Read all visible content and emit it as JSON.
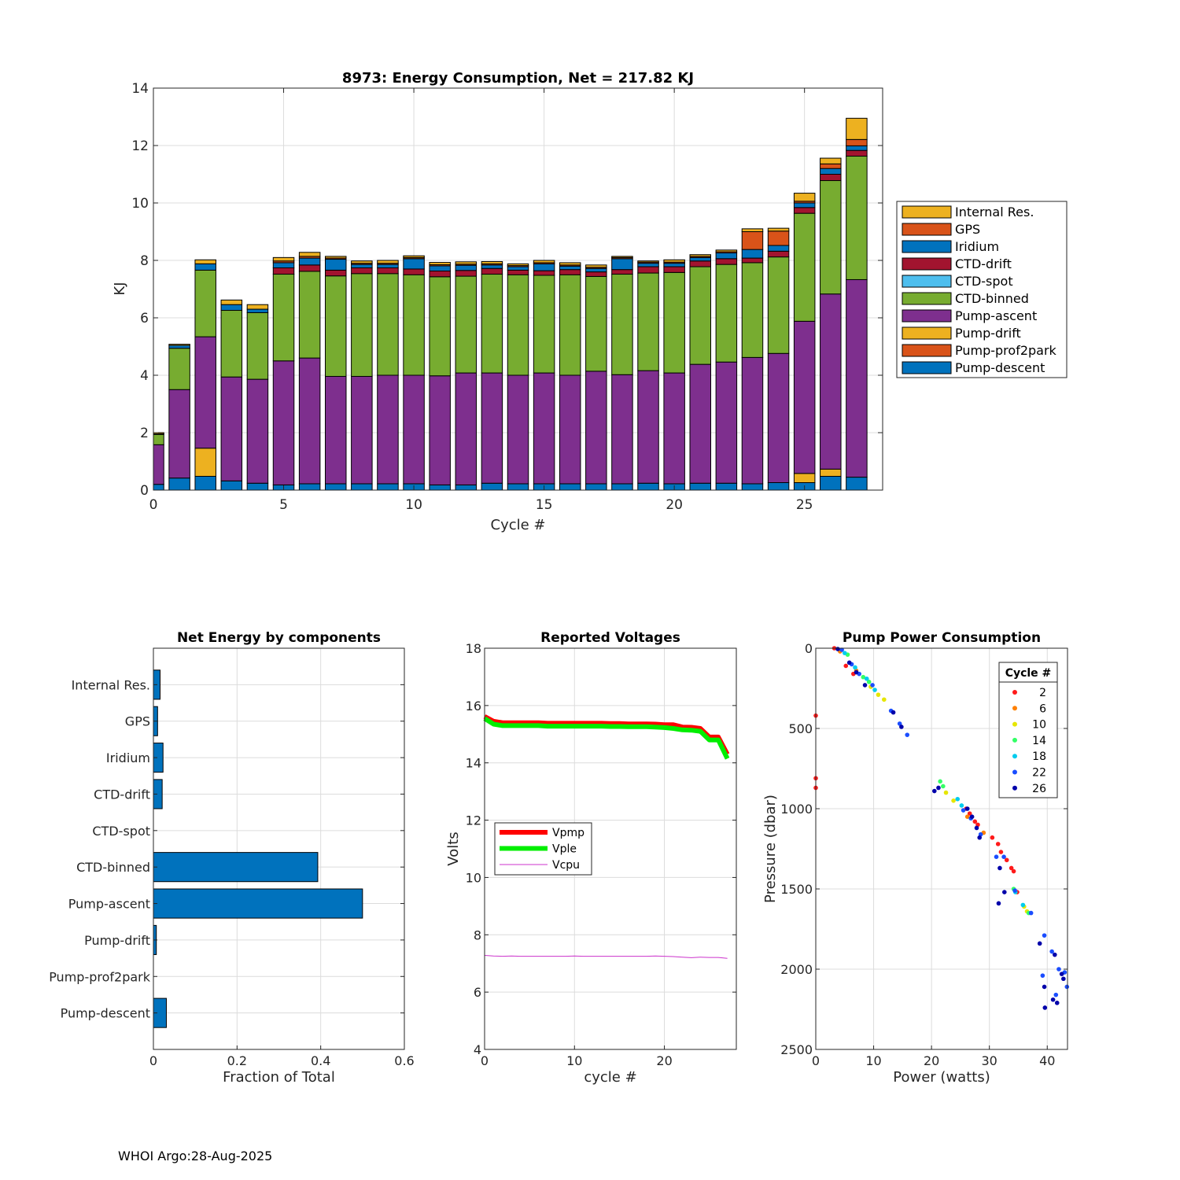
{
  "footer": "WHOI Argo:28-Aug-2025",
  "colors": {
    "Pump-descent": "#0072BD",
    "Pump-prof2park": "#D95319",
    "Pump-drift": "#EDB120",
    "Pump-ascent": "#7E2F8E",
    "CTD-binned": "#77AC30",
    "CTD-spot": "#4DBEEE",
    "CTD-drift": "#A2142F",
    "Iridium": "#0072BD",
    "GPS": "#D95319",
    "Internal Res.": "#EDB120"
  },
  "chart_data": [
    {
      "id": "energy",
      "type": "bar",
      "stacked": true,
      "title": "8973: Energy Consumption,  Net = 217.82 KJ",
      "xlabel": "Cycle #",
      "ylabel": "KJ",
      "xlim": [
        0,
        28
      ],
      "ylim": [
        0,
        14
      ],
      "xticks": [
        0,
        5,
        10,
        15,
        20,
        25
      ],
      "yticks": [
        0,
        2,
        4,
        6,
        8,
        10,
        12,
        14
      ],
      "legend_position": "outside-right",
      "legend": [
        "Internal Res.",
        "GPS",
        "Iridium",
        "CTD-drift",
        "CTD-spot",
        "CTD-binned",
        "Pump-ascent",
        "Pump-drift",
        "Pump-prof2park",
        "Pump-descent"
      ],
      "stack_order": [
        "Pump-descent",
        "Pump-prof2park",
        "Pump-drift",
        "Pump-ascent",
        "CTD-binned",
        "CTD-spot",
        "CTD-drift",
        "Iridium",
        "GPS",
        "Internal Res."
      ],
      "categories": [
        0,
        1,
        2,
        3,
        4,
        5,
        6,
        7,
        8,
        9,
        10,
        11,
        12,
        13,
        14,
        15,
        16,
        17,
        18,
        19,
        20,
        21,
        22,
        23,
        24,
        25,
        26,
        27
      ],
      "series": [
        {
          "name": "Pump-descent",
          "values": [
            0.2,
            0.42,
            0.48,
            0.32,
            0.24,
            0.18,
            0.22,
            0.22,
            0.22,
            0.22,
            0.22,
            0.18,
            0.18,
            0.24,
            0.22,
            0.22,
            0.22,
            0.22,
            0.22,
            0.24,
            0.22,
            0.24,
            0.24,
            0.22,
            0.26,
            0.26,
            0.48,
            0.45
          ]
        },
        {
          "name": "Pump-prof2park",
          "values": [
            0,
            0,
            0,
            0,
            0,
            0,
            0,
            0,
            0,
            0,
            0,
            0,
            0,
            0,
            0,
            0,
            0,
            0,
            0,
            0,
            0,
            0,
            0,
            0,
            0,
            0,
            0,
            0
          ]
        },
        {
          "name": "Pump-drift",
          "values": [
            0,
            0,
            0.98,
            0,
            0,
            0,
            0,
            0,
            0,
            0,
            0,
            0,
            0,
            0,
            0,
            0,
            0,
            0,
            0,
            0,
            0,
            0,
            0,
            0,
            0,
            0.32,
            0.25,
            0
          ]
        },
        {
          "name": "Pump-ascent",
          "values": [
            1.38,
            3.08,
            3.88,
            3.62,
            3.62,
            4.32,
            4.38,
            3.74,
            3.74,
            3.78,
            3.78,
            3.8,
            3.9,
            3.84,
            3.78,
            3.86,
            3.78,
            3.92,
            3.8,
            3.92,
            3.86,
            4.14,
            4.22,
            4.4,
            4.5,
            5.3,
            6.1,
            6.88
          ]
        },
        {
          "name": "CTD-binned",
          "values": [
            0.36,
            1.44,
            2.32,
            2.32,
            2.32,
            3.02,
            3.02,
            3.5,
            3.58,
            3.54,
            3.5,
            3.45,
            3.37,
            3.44,
            3.5,
            3.4,
            3.5,
            3.3,
            3.5,
            3.4,
            3.5,
            3.4,
            3.4,
            3.3,
            3.36,
            3.76,
            3.95,
            4.3
          ]
        },
        {
          "name": "CTD-spot",
          "values": [
            0,
            0,
            0,
            0,
            0,
            0,
            0,
            0,
            0,
            0,
            0,
            0,
            0,
            0,
            0,
            0,
            0,
            0,
            0,
            0,
            0,
            0,
            0,
            0,
            0,
            0,
            0,
            0
          ]
        },
        {
          "name": "CTD-drift",
          "values": [
            0,
            0,
            0,
            0,
            0,
            0.22,
            0.22,
            0.2,
            0.2,
            0.2,
            0.2,
            0.2,
            0.2,
            0.2,
            0.16,
            0.16,
            0.18,
            0.16,
            0.16,
            0.22,
            0.2,
            0.2,
            0.2,
            0.16,
            0.2,
            0.2,
            0.22,
            0.2
          ]
        },
        {
          "name": "Iridium",
          "values": [
            0.02,
            0.1,
            0.22,
            0.2,
            0.12,
            0.18,
            0.24,
            0.38,
            0.12,
            0.12,
            0.36,
            0.18,
            0.18,
            0.12,
            0.12,
            0.24,
            0.12,
            0.12,
            0.38,
            0.12,
            0.12,
            0.12,
            0.2,
            0.3,
            0.2,
            0.16,
            0.2,
            0.16
          ]
        },
        {
          "name": "GPS",
          "values": [
            0,
            0,
            0,
            0,
            0,
            0.06,
            0.06,
            0.04,
            0.04,
            0.04,
            0.04,
            0.04,
            0.04,
            0.04,
            0.04,
            0.04,
            0.04,
            0.04,
            0.04,
            0.04,
            0.04,
            0.04,
            0.04,
            0.62,
            0.5,
            0.06,
            0.16,
            0.22
          ]
        },
        {
          "name": "Internal Res.",
          "values": [
            0.04,
            0.04,
            0.14,
            0.16,
            0.16,
            0.12,
            0.14,
            0.06,
            0.08,
            0.1,
            0.06,
            0.08,
            0.08,
            0.08,
            0.06,
            0.08,
            0.08,
            0.08,
            0.04,
            0.04,
            0.08,
            0.06,
            0.06,
            0.1,
            0.1,
            0.28,
            0.2,
            0.74
          ]
        }
      ]
    },
    {
      "id": "components",
      "type": "bar",
      "orientation": "horizontal",
      "title": "Net Energy by components",
      "xlabel": "Fraction of Total",
      "xlim": [
        0,
        0.6
      ],
      "xticks": [
        "0",
        "0.2",
        "0.4",
        "0.6"
      ],
      "categories": [
        "Internal Res.",
        "GPS",
        "Iridium",
        "CTD-drift",
        "CTD-spot",
        "CTD-binned",
        "Pump-ascent",
        "Pump-drift",
        "Pump-prof2park",
        "Pump-descent"
      ],
      "values": [
        0.016,
        0.01,
        0.023,
        0.021,
        0,
        0.393,
        0.5,
        0.007,
        0,
        0.031
      ]
    },
    {
      "id": "voltages",
      "type": "line",
      "title": "Reported Voltages",
      "xlabel": "cycle #",
      "ylabel": "Volts",
      "xlim": [
        0,
        28
      ],
      "ylim": [
        4,
        18
      ],
      "xticks": [
        0,
        10,
        20
      ],
      "yticks": [
        4,
        6,
        8,
        10,
        12,
        14,
        16,
        18
      ],
      "legend_position": "left-middle",
      "series": [
        {
          "name": "Vpmp",
          "color": "#ff0000",
          "width": 6,
          "x": [
            0,
            1,
            2,
            3,
            4,
            5,
            6,
            7,
            8,
            9,
            10,
            11,
            12,
            13,
            14,
            15,
            16,
            17,
            18,
            19,
            20,
            21,
            22,
            23,
            24,
            25,
            26,
            27
          ],
          "y": [
            15.62,
            15.45,
            15.4,
            15.4,
            15.4,
            15.4,
            15.4,
            15.38,
            15.38,
            15.38,
            15.38,
            15.38,
            15.38,
            15.38,
            15.37,
            15.37,
            15.36,
            15.36,
            15.36,
            15.35,
            15.33,
            15.33,
            15.25,
            15.24,
            15.2,
            14.9,
            14.9,
            14.3
          ]
        },
        {
          "name": "Vple",
          "color": "#00ee00",
          "width": 6,
          "x": [
            0,
            1,
            2,
            3,
            4,
            5,
            6,
            7,
            8,
            9,
            10,
            11,
            12,
            13,
            14,
            15,
            16,
            17,
            18,
            19,
            20,
            21,
            22,
            23,
            24,
            25,
            26,
            27
          ],
          "y": [
            15.55,
            15.35,
            15.3,
            15.3,
            15.3,
            15.3,
            15.3,
            15.28,
            15.28,
            15.28,
            15.28,
            15.28,
            15.28,
            15.28,
            15.27,
            15.27,
            15.26,
            15.26,
            15.26,
            15.25,
            15.23,
            15.2,
            15.15,
            15.14,
            15.1,
            14.8,
            14.8,
            14.15
          ]
        },
        {
          "name": "Vcpu",
          "color": "#cc33cc",
          "width": 1,
          "x": [
            0,
            1,
            2,
            3,
            4,
            5,
            6,
            7,
            8,
            9,
            10,
            11,
            12,
            13,
            14,
            15,
            16,
            17,
            18,
            19,
            20,
            21,
            22,
            23,
            24,
            25,
            26,
            27
          ],
          "y": [
            7.28,
            7.26,
            7.25,
            7.26,
            7.25,
            7.25,
            7.25,
            7.25,
            7.25,
            7.25,
            7.26,
            7.25,
            7.25,
            7.25,
            7.25,
            7.25,
            7.25,
            7.25,
            7.25,
            7.26,
            7.25,
            7.24,
            7.22,
            7.2,
            7.22,
            7.21,
            7.21,
            7.18
          ]
        }
      ]
    },
    {
      "id": "pump",
      "type": "scatter",
      "title": "Pump Power Consumption",
      "xlabel": "Power (watts)",
      "ylabel": "Pressure (dbar)",
      "xlim": [
        0,
        43.5
      ],
      "ylim": [
        0,
        2500
      ],
      "y_reversed": true,
      "xticks": [
        0,
        10,
        20,
        30,
        40
      ],
      "yticks": [
        0,
        500,
        1000,
        1500,
        2000,
        2500
      ],
      "legend_title": "Cycle #",
      "legend_position": "top-right",
      "legend": [
        "2",
        "6",
        "10",
        "14",
        "18",
        "22",
        "26"
      ],
      "series": [
        {
          "name": "2",
          "color": "#ff1a1a",
          "points": [
            [
              3.2,
              0
            ],
            [
              0,
              420
            ],
            [
              0,
              810
            ],
            [
              0,
              870
            ],
            [
              5.2,
              110
            ],
            [
              6.5,
              160
            ],
            [
              26,
              1000
            ],
            [
              27.5,
              1080
            ],
            [
              28,
              1100
            ],
            [
              30.5,
              1180
            ],
            [
              31.5,
              1220
            ],
            [
              32,
              1270
            ],
            [
              33,
              1320
            ],
            [
              33.8,
              1370
            ],
            [
              34.2,
              1390
            ],
            [
              34.8,
              1520
            ],
            [
              26.6,
              1030
            ]
          ]
        },
        {
          "name": "6",
          "color": "#ff8000",
          "points": [
            [
              4.2,
              20
            ],
            [
              7.0,
              140
            ],
            [
              26.2,
              1050
            ],
            [
              29,
              1150
            ]
          ]
        },
        {
          "name": "10",
          "color": "#e6e600",
          "points": [
            [
              9.5,
              240
            ],
            [
              10.8,
              290
            ],
            [
              11.8,
              320
            ],
            [
              22.5,
              900
            ],
            [
              23.8,
              950
            ],
            [
              36,
              1610
            ],
            [
              36.5,
              1640
            ]
          ]
        },
        {
          "name": "14",
          "color": "#33ff66",
          "points": [
            [
              5.5,
              40
            ],
            [
              8.2,
              180
            ],
            [
              9.2,
              210
            ],
            [
              21.5,
              830
            ],
            [
              22,
              860
            ],
            [
              34.2,
              1500
            ],
            [
              36.8,
              1650
            ]
          ]
        },
        {
          "name": "18",
          "color": "#00ccee",
          "points": [
            [
              5.0,
              30
            ],
            [
              6.8,
              120
            ],
            [
              8.8,
              190
            ],
            [
              10.2,
              260
            ],
            [
              24.5,
              940
            ],
            [
              25.2,
              980
            ],
            [
              34.5,
              1520
            ],
            [
              35.8,
              1600
            ]
          ]
        },
        {
          "name": "22",
          "color": "#1a4dff",
          "points": [
            [
              4.5,
              10
            ],
            [
              6.2,
              100
            ],
            [
              7.5,
              160
            ],
            [
              9.8,
              230
            ],
            [
              13,
              390
            ],
            [
              14.5,
              470
            ],
            [
              15.8,
              540
            ],
            [
              25.5,
              1010
            ],
            [
              26.8,
              1060
            ],
            [
              28.5,
              1160
            ],
            [
              31.2,
              1300
            ],
            [
              32.5,
              1300
            ],
            [
              37.2,
              1650
            ],
            [
              39.5,
              1790
            ],
            [
              40.8,
              1890
            ],
            [
              42,
              2000
            ],
            [
              43,
              2020
            ],
            [
              43.4,
              2110
            ],
            [
              41.5,
              2160
            ],
            [
              39.2,
              2040
            ],
            [
              34.4,
              1510
            ]
          ]
        },
        {
          "name": "26",
          "color": "#0000aa",
          "points": [
            [
              3.8,
              5
            ],
            [
              5.8,
              90
            ],
            [
              7.0,
              150
            ],
            [
              8.5,
              230
            ],
            [
              13.4,
              400
            ],
            [
              14.8,
              490
            ],
            [
              20.5,
              890
            ],
            [
              21.2,
              870
            ],
            [
              26.2,
              1000
            ],
            [
              27,
              1050
            ],
            [
              27.8,
              1120
            ],
            [
              28.3,
              1180
            ],
            [
              31.8,
              1370
            ],
            [
              32.6,
              1520
            ],
            [
              31.6,
              1590
            ],
            [
              38.7,
              1840
            ],
            [
              41.3,
              1910
            ],
            [
              42.5,
              2030
            ],
            [
              42.8,
              2060
            ],
            [
              39.5,
              2110
            ],
            [
              41,
              2190
            ],
            [
              41.7,
              2210
            ],
            [
              39.6,
              2240
            ]
          ]
        }
      ]
    }
  ]
}
